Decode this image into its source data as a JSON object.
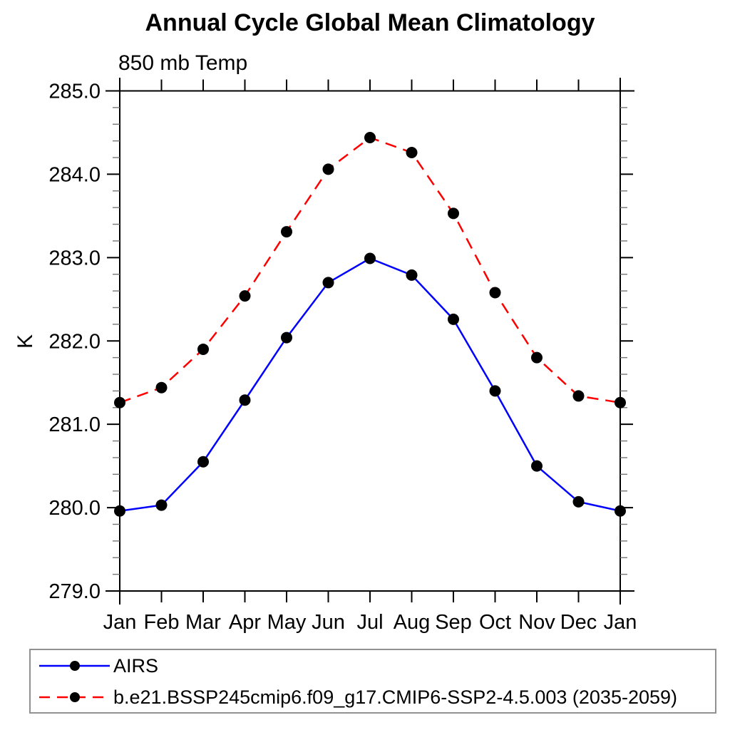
{
  "chart_data": {
    "type": "line",
    "title": "Annual Cycle Global Mean Climatology",
    "subtitle": "850 mb Temp",
    "ylabel": "K",
    "categories": [
      "Jan",
      "Feb",
      "Mar",
      "Apr",
      "May",
      "Jun",
      "Jul",
      "Aug",
      "Sep",
      "Oct",
      "Nov",
      "Dec",
      "Jan"
    ],
    "ylim": [
      279.0,
      285.0
    ],
    "y_major_ticks": [
      279,
      280,
      281,
      282,
      283,
      284,
      285
    ],
    "y_tick_labels": [
      "279.0",
      "280.0",
      "281.0",
      "282.0",
      "283.0",
      "284.0",
      "285.0"
    ],
    "y_minor_step": 0.2,
    "grid": false,
    "legend_position": "bottom-left-box",
    "axis_color": "#000000",
    "minor_tick_color": "#777777",
    "marker": "filled-circle",
    "marker_color": "#000000",
    "series": [
      {
        "name": "AIRS",
        "color": "#0000ff",
        "line_style": "solid",
        "values": [
          279.96,
          280.03,
          280.55,
          281.29,
          282.04,
          282.7,
          282.99,
          282.79,
          282.26,
          281.4,
          280.5,
          280.07,
          279.96
        ]
      },
      {
        "name": "b.e21.BSSP245cmip6.f09_g17.CMIP6-SSP2-4.5.003 (2035-2059)",
        "color": "#ff0000",
        "line_style": "dashed",
        "values": [
          281.26,
          281.44,
          281.9,
          282.54,
          283.31,
          284.06,
          284.44,
          284.26,
          283.53,
          282.58,
          281.8,
          281.34,
          281.26
        ]
      }
    ]
  }
}
